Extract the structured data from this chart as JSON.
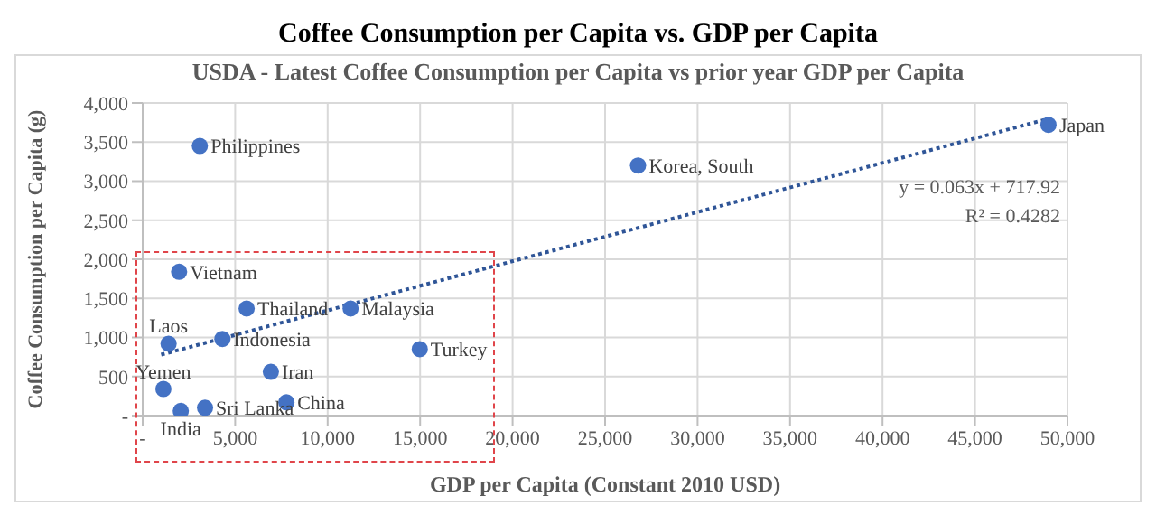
{
  "chart_data": {
    "type": "scatter",
    "title": "Coffee Consumption per Capita vs. GDP per Capita",
    "subtitle": "USDA - Latest Coffee Consumption per Capita vs prior year GDP per Capita",
    "xlabel": "GDP per Capita (Constant 2010 USD)",
    "ylabel": "Coffee Consumption per Capita (g)",
    "xlim": [
      0,
      50000
    ],
    "xticks": [
      {
        "value": 0,
        "label": "-"
      },
      {
        "value": 5000,
        "label": "5,000"
      },
      {
        "value": 10000,
        "label": "10,000"
      },
      {
        "value": 15000,
        "label": "15,000"
      },
      {
        "value": 20000,
        "label": "20,000"
      },
      {
        "value": 25000,
        "label": "25,000"
      },
      {
        "value": 30000,
        "label": "30,000"
      },
      {
        "value": 35000,
        "label": "35,000"
      },
      {
        "value": 40000,
        "label": "40,000"
      },
      {
        "value": 45000,
        "label": "45,000"
      },
      {
        "value": 50000,
        "label": "50,000"
      }
    ],
    "ylim": [
      0,
      4000
    ],
    "yticks": [
      {
        "value": 0,
        "label": "-"
      },
      {
        "value": 500,
        "label": "500"
      },
      {
        "value": 1000,
        "label": "1,000"
      },
      {
        "value": 1500,
        "label": "1,500"
      },
      {
        "value": 2000,
        "label": "2,000"
      },
      {
        "value": 2500,
        "label": "2,500"
      },
      {
        "value": 3000,
        "label": "3,000"
      },
      {
        "value": 3500,
        "label": "3,500"
      },
      {
        "value": 4000,
        "label": "4,000"
      }
    ],
    "grid": true,
    "marker": "circle",
    "series": [
      {
        "color": "#4472c4",
        "x": [
          3090,
          26780,
          48970,
          1970,
          5620,
          11240,
          1400,
          4310,
          6930,
          14980,
          1120,
          3370,
          2060,
          7770
        ],
        "values": [
          3450,
          3200,
          3720,
          1840,
          1370,
          1370,
          920,
          980,
          560,
          850,
          340,
          100,
          60,
          170
        ]
      },
      {
        "type": "line",
        "color": "#2f5597",
        "line_style": "dotted",
        "marker": "none",
        "x": [
          1000,
          49000
        ],
        "values": [
          780,
          3800
        ]
      }
    ],
    "annotations": [
      {
        "text": "Philippines",
        "x": 3090,
        "y": 3450
      },
      {
        "text": "Korea, South",
        "x": 26780,
        "y": 3200
      },
      {
        "text": "Japan",
        "x": 48970,
        "y": 3720
      },
      {
        "text": "Vietnam",
        "x": 1970,
        "y": 1840
      },
      {
        "text": "Thailand",
        "x": 5620,
        "y": 1370
      },
      {
        "text": "Malaysia",
        "x": 11240,
        "y": 1370
      },
      {
        "text": "Laos",
        "x": 1400,
        "y": 920
      },
      {
        "text": "Indonesia",
        "x": 4310,
        "y": 980
      },
      {
        "text": "Iran",
        "x": 6930,
        "y": 560
      },
      {
        "text": "Turkey",
        "x": 14980,
        "y": 850
      },
      {
        "text": "Yemen",
        "x": 1120,
        "y": 340
      },
      {
        "text": "Sri Lanka",
        "x": 3370,
        "y": 100
      },
      {
        "text": "India",
        "x": 2060,
        "y": 60
      },
      {
        "text": "China",
        "x": 7770,
        "y": 170
      },
      "y = 0.063x + 717.92",
      "R² = 0.4282"
    ]
  }
}
